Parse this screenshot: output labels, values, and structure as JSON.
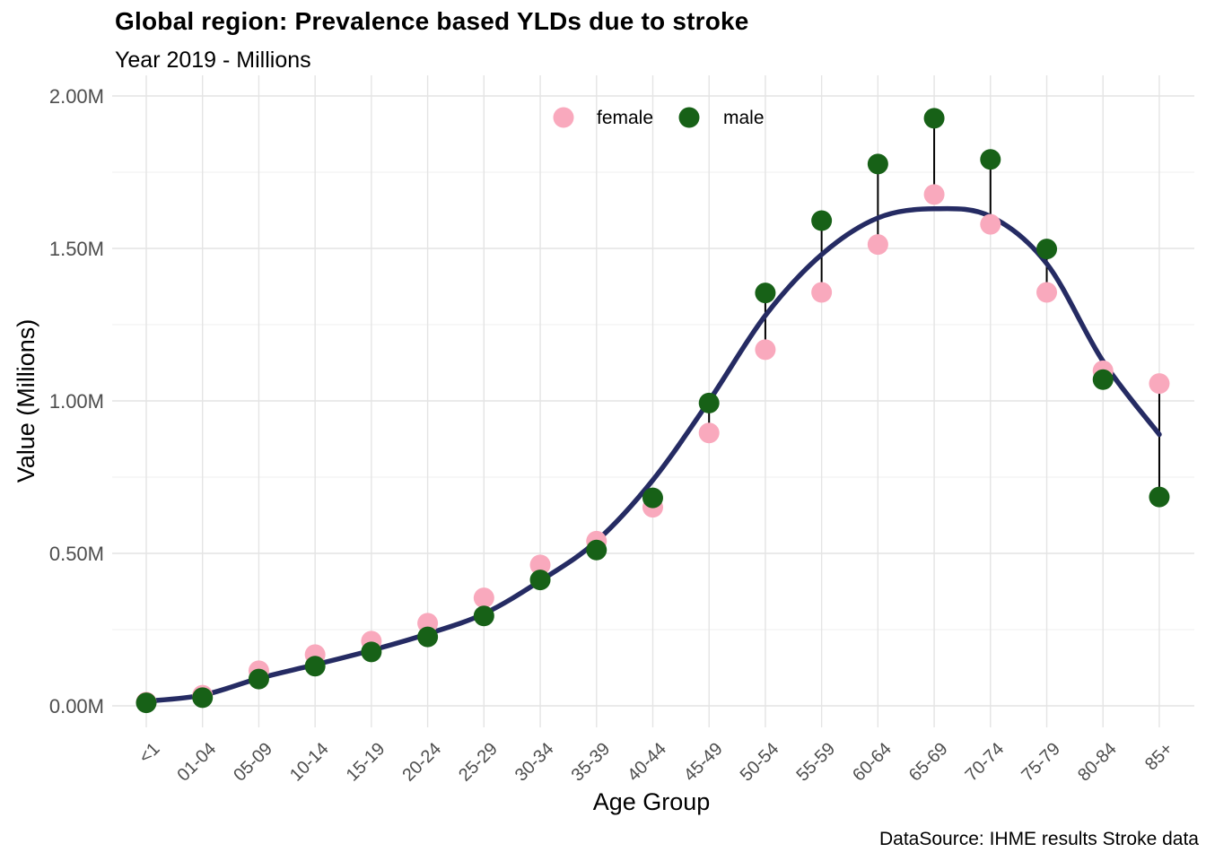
{
  "caption": "DataSource: IHME results Stroke data",
  "chart_data": {
    "type": "scatter",
    "title": "Global region: Prevalence based YLDs due to stroke",
    "subtitle": "Year 2019 - Millions",
    "xlabel": "Age Group",
    "ylabel": "Value (Millions)",
    "ylim": [
      0,
      2.0
    ],
    "grid": true,
    "legend_position": "top-center",
    "y_ticks": [
      {
        "label": "0.00M",
        "value": 0
      },
      {
        "label": "0.50M",
        "value": 0.5
      },
      {
        "label": "1.00M",
        "value": 1.0
      },
      {
        "label": "1.50M",
        "value": 1.5
      },
      {
        "label": "2.00M",
        "value": 2.0
      }
    ],
    "y_minor_ticks": [
      0.25,
      0.75,
      1.25,
      1.75
    ],
    "categories": [
      "<1",
      "01-04",
      "05-09",
      "10-14",
      "15-19",
      "20-24",
      "25-29",
      "30-34",
      "35-39",
      "40-44",
      "45-49",
      "50-54",
      "55-59",
      "60-64",
      "65-69",
      "70-74",
      "75-79",
      "80-84",
      "85+"
    ],
    "series": [
      {
        "name": "female",
        "color": "#F9A9BD",
        "values": [
          0.012,
          0.035,
          0.115,
          0.168,
          0.212,
          0.271,
          0.354,
          0.462,
          0.54,
          0.651,
          0.895,
          1.168,
          1.356,
          1.513,
          1.677,
          1.579,
          1.356,
          1.099,
          1.057
        ]
      },
      {
        "name": "male",
        "color": "#176117",
        "values": [
          0.01,
          0.027,
          0.088,
          0.13,
          0.177,
          0.226,
          0.295,
          0.413,
          0.511,
          0.682,
          0.993,
          1.354,
          1.591,
          1.777,
          1.927,
          1.792,
          1.498,
          1.07,
          0.685
        ]
      }
    ],
    "range_segments": {
      "color": "#000000",
      "description": "vertical black line joining female and male values at each age group"
    },
    "trend_line": {
      "color": "#252B63",
      "values": [
        0.015,
        0.035,
        0.09,
        0.135,
        0.182,
        0.236,
        0.302,
        0.41,
        0.54,
        0.74,
        1.0,
        1.28,
        1.48,
        1.6,
        1.63,
        1.605,
        1.45,
        1.13,
        0.89
      ]
    }
  },
  "styles": {
    "background": "#FFFFFF",
    "grid_major_color": "#E4E4E4",
    "grid_minor_color": "#EFEFEF",
    "tick_label_color": "#4D4D4D",
    "text_color": "#000000"
  }
}
